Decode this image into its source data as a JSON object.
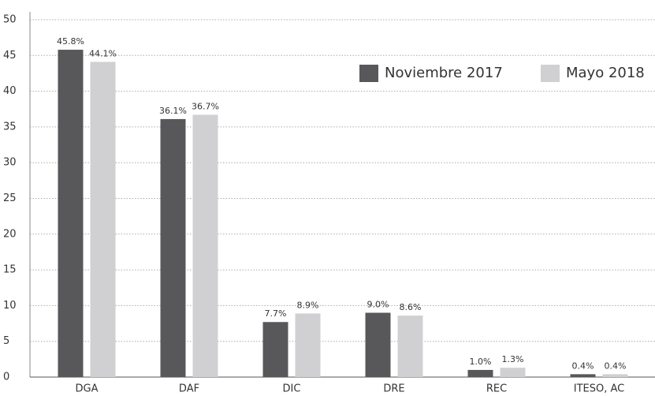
{
  "chart_data": {
    "type": "bar",
    "categories": [
      "DGA",
      "DAF",
      "DIC",
      "DRE",
      "REC",
      "ITESO, AC"
    ],
    "series": [
      {
        "name": "Noviembre 2017",
        "color": "#58585a",
        "values": [
          45.8,
          36.1,
          7.7,
          9.0,
          1.0,
          0.4
        ],
        "value_labels": [
          "45.8%",
          "36.1%",
          "7.7%",
          "9.0%",
          "1.0%",
          "0.4%"
        ]
      },
      {
        "name": "Mayo 2018",
        "color": "#d0d0d2",
        "values": [
          44.1,
          36.7,
          8.9,
          8.6,
          1.3,
          0.4
        ],
        "value_labels": [
          "44.1%",
          "36.7%",
          "8.9%",
          "8.6%",
          "1.3%",
          "0.4%"
        ]
      }
    ],
    "ylim": [
      0,
      50
    ],
    "yticks": [
      0,
      5,
      10,
      15,
      20,
      25,
      30,
      35,
      40,
      45,
      50
    ],
    "grid": true,
    "legend": "upper right"
  }
}
